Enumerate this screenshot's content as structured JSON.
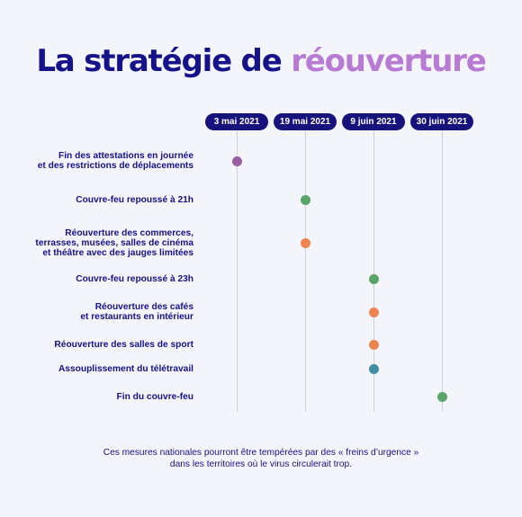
{
  "title": {
    "main": "La stratégie de",
    "accent": "réouverture"
  },
  "colors": {
    "navy": "#17137d",
    "accent": "#b77bd4",
    "purple": "#9b5ea3",
    "green": "#5aa46a",
    "orange": "#ec8550",
    "teal": "#3f8ea3"
  },
  "dates": [
    "3 mai 2021",
    "19 mai 2021",
    "9 juin 2021",
    "30 juin 2021"
  ],
  "events": [
    {
      "label": "Fin des attestations en journée\net des restrictions de déplacements",
      "date_index": 0,
      "color": "#9b5ea3"
    },
    {
      "label": "Couvre-feu repoussé à 21h",
      "date_index": 1,
      "color": "#5aa46a"
    },
    {
      "label": "Réouverture des commerces,\nterrasses, musées, salles de cinéma\net théâtre avec des jauges limitées",
      "date_index": 1,
      "color": "#ec8550"
    },
    {
      "label": "Couvre-feu repoussé à 23h",
      "date_index": 2,
      "color": "#5aa46a"
    },
    {
      "label": "Réouverture des cafés\net restaurants en intérieur",
      "date_index": 2,
      "color": "#ec8550"
    },
    {
      "label": "Réouverture des salles de sport",
      "date_index": 2,
      "color": "#ec8550"
    },
    {
      "label": "Assouplissement du télétravail",
      "date_index": 2,
      "color": "#3f8ea3"
    },
    {
      "label": "Fin du couvre-feu",
      "date_index": 3,
      "color": "#5aa46a"
    }
  ],
  "footnote": "Ces mesures nationales pourront être tempérées par des « freins d’urgence »\ndans les territoires où le virus circulerait trop."
}
